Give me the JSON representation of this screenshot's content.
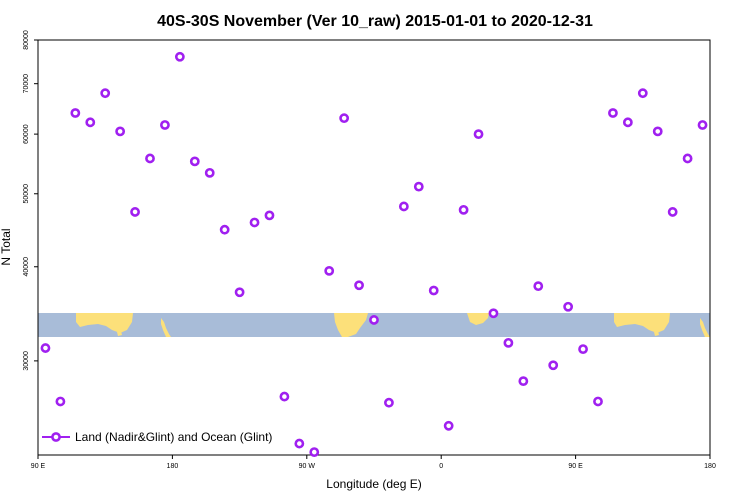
{
  "chart_data": {
    "type": "scatter",
    "title": "40S-30S November (Ver 10_raw)   2015-01-01 to 2020-12-31",
    "xlabel": "Longitude (deg E)",
    "ylabel": "N Total",
    "x_scale": "longitude",
    "y_scale": "log",
    "xlim": [
      90,
      540
    ],
    "ylim": [
      22500,
      80000
    ],
    "x_ticks": [
      {
        "value": 90,
        "label": "90 E"
      },
      {
        "value": 180,
        "label": "180"
      },
      {
        "value": 270,
        "label": "90 W"
      },
      {
        "value": 360,
        "label": "0"
      },
      {
        "value": 450,
        "label": "90 E"
      },
      {
        "value": 540,
        "label": "180"
      }
    ],
    "y_ticks": [
      {
        "value": 30000,
        "label": "30000"
      },
      {
        "value": 40000,
        "label": "40000"
      },
      {
        "value": 50000,
        "label": "50000"
      },
      {
        "value": 60000,
        "label": "60000"
      },
      {
        "value": 70000,
        "label": "70000"
      },
      {
        "value": 80000,
        "label": "80000"
      }
    ],
    "grid": false,
    "legend_position": "bottom-left",
    "series": [
      {
        "name": "Land (Nadir&Glint) and Ocean (Glint)",
        "color": "#a020f0",
        "marker": "open-circle",
        "x": [
          95,
          105,
          115,
          125,
          135,
          145,
          155,
          165,
          175,
          185,
          195,
          205,
          215,
          225,
          235,
          245,
          255,
          265,
          275,
          285,
          295,
          305,
          315,
          325,
          335,
          345,
          355,
          365,
          375,
          385,
          395,
          405,
          415,
          425,
          435,
          445,
          455,
          465,
          475,
          485,
          495,
          505,
          515,
          525,
          535
        ],
        "y": [
          31200,
          26500,
          64000,
          62200,
          68000,
          60500,
          47300,
          55700,
          61700,
          76000,
          55200,
          53300,
          44800,
          37000,
          45800,
          46800,
          26900,
          23300,
          22700,
          39500,
          63000,
          37800,
          34000,
          26400,
          48100,
          51100,
          37200,
          24600,
          47600,
          60000,
          34700,
          31700,
          28200,
          37700,
          29600,
          35400,
          31100,
          26500,
          64000,
          62200,
          68000,
          60500,
          47300,
          55700,
          61700
        ]
      }
    ]
  },
  "map_colors": {
    "ocean": "#a8bcd8",
    "land": "#fce07a"
  }
}
